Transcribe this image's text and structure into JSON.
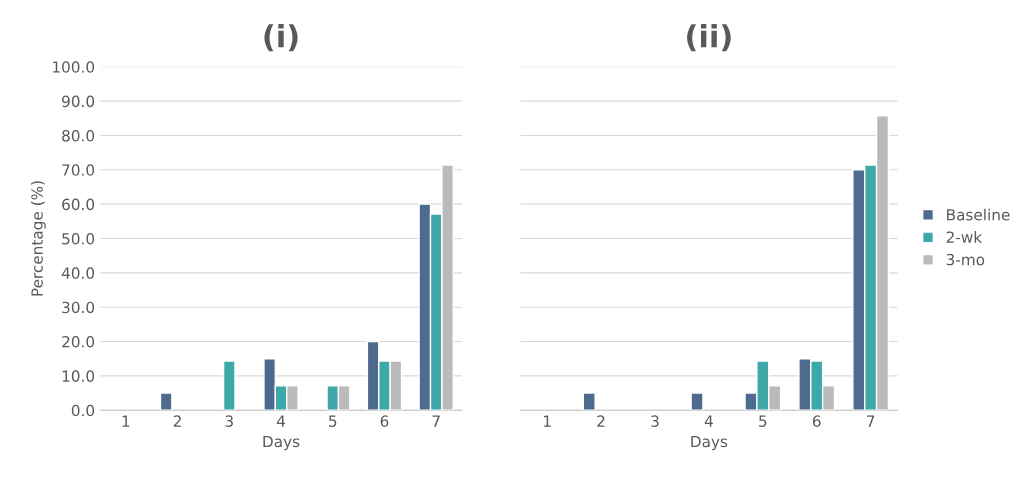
{
  "chart_data": [
    {
      "type": "bar",
      "title": "(i)",
      "xlabel": "Days",
      "ylabel": "Percentage (%)",
      "categories": [
        "1",
        "2",
        "3",
        "4",
        "5",
        "6",
        "7"
      ],
      "series": [
        {
          "color": "#4f6a8f",
          "values": [
            null,
            5,
            null,
            15,
            null,
            20,
            60
          ]
        },
        {
          "color": "#3ea8a8",
          "values": [
            null,
            null,
            14.3,
            7.1,
            7.1,
            14.3,
            57.1
          ]
        },
        {
          "color": "#bababa",
          "values": [
            null,
            null,
            null,
            7.1,
            7.1,
            14.3,
            71.4
          ]
        }
      ],
      "ylim": [
        0,
        100
      ],
      "yticks": [
        {
          "value": 0,
          "label": "0.0"
        },
        {
          "value": 10,
          "label": "10.0"
        },
        {
          "value": 20,
          "label": "20.0"
        },
        {
          "value": 30,
          "label": "30.0"
        },
        {
          "value": 40,
          "label": "40.0"
        },
        {
          "value": 50,
          "label": "50.0"
        },
        {
          "value": 60,
          "label": "60.0"
        },
        {
          "value": 70,
          "label": "70.0"
        },
        {
          "value": 80,
          "label": "80.0"
        },
        {
          "value": 90,
          "label": "90.0"
        },
        {
          "value": 100,
          "label": "100.0"
        }
      ],
      "grid": "y"
    },
    {
      "type": "bar",
      "title": "(ii)",
      "xlabel": "Days",
      "categories": [
        "1",
        "2",
        "3",
        "4",
        "5",
        "6",
        "7"
      ],
      "series": [
        {
          "name": "Baseline",
          "color": "#4f6a8f",
          "values": [
            null,
            5,
            null,
            5,
            5,
            15,
            70
          ]
        },
        {
          "name": "2-wk",
          "color": "#3ea8a8",
          "values": [
            null,
            null,
            null,
            null,
            14.3,
            14.3,
            71.4
          ]
        },
        {
          "name": "3-mo",
          "color": "#bababa",
          "values": [
            null,
            null,
            null,
            null,
            7.1,
            7.1,
            85.7
          ]
        }
      ],
      "ylim": [
        0,
        100
      ],
      "yticks": [
        0,
        10,
        20,
        30,
        40,
        50,
        60,
        70,
        80,
        90,
        100
      ],
      "grid": "y",
      "legend": "right",
      "tick_labels": "x"
    }
  ]
}
